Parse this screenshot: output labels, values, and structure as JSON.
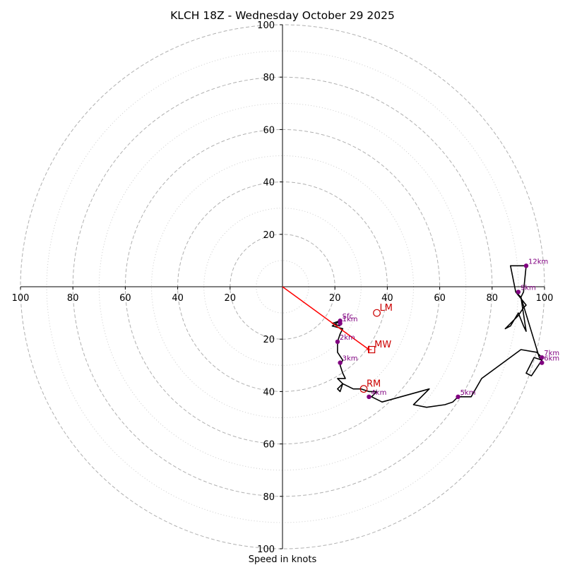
{
  "chart_data": {
    "type": "hodograph",
    "title": "KLCH 18Z - Wednesday October 29 2025",
    "xlabel": "Speed in knots",
    "range": [
      -100,
      100
    ],
    "ring_major": [
      20,
      40,
      60,
      80,
      100
    ],
    "ring_minor": [
      10,
      30,
      50,
      70,
      90
    ],
    "ticks": [
      {
        "label": "100",
        "v": -100
      },
      {
        "label": "80",
        "v": -80
      },
      {
        "label": "60",
        "v": -60
      },
      {
        "label": "40",
        "v": -40
      },
      {
        "label": "20",
        "v": -20
      },
      {
        "label": "20",
        "v": 20
      },
      {
        "label": "40",
        "v": 40
      },
      {
        "label": "60",
        "v": 60
      },
      {
        "label": "80",
        "v": 80
      },
      {
        "label": "100",
        "v": 100
      }
    ],
    "trace": [
      [
        22,
        -15
      ],
      [
        19,
        -14
      ],
      [
        22,
        -13
      ],
      [
        19,
        -15
      ],
      [
        23,
        -16
      ],
      [
        22,
        -18
      ],
      [
        21,
        -21
      ],
      [
        21,
        -25
      ],
      [
        23,
        -28
      ],
      [
        22,
        -30
      ],
      [
        23,
        -33
      ],
      [
        24,
        -35
      ],
      [
        21,
        -35
      ],
      [
        23,
        -37
      ],
      [
        21,
        -39
      ],
      [
        22,
        -40
      ],
      [
        23,
        -37
      ],
      [
        27,
        -39
      ],
      [
        30,
        -39
      ],
      [
        33,
        -40
      ],
      [
        36,
        -40
      ],
      [
        34,
        -42
      ],
      [
        38,
        -44
      ],
      [
        56,
        -39
      ],
      [
        50,
        -45
      ],
      [
        55,
        -46
      ],
      [
        62,
        -45
      ],
      [
        65,
        -44
      ],
      [
        67,
        -42
      ],
      [
        72,
        -42
      ],
      [
        76,
        -35
      ],
      [
        91,
        -24
      ],
      [
        97,
        -25
      ],
      [
        99,
        -27
      ],
      [
        99,
        -28
      ],
      [
        96,
        -27
      ],
      [
        93,
        -33
      ],
      [
        95,
        -34
      ],
      [
        99,
        -28
      ],
      [
        98,
        -27
      ],
      [
        91,
        -4
      ],
      [
        89,
        -2
      ],
      [
        87,
        8
      ],
      [
        93,
        8
      ],
      [
        92,
        -2
      ],
      [
        91,
        -4
      ],
      [
        93,
        -17
      ],
      [
        92,
        -15
      ],
      [
        90,
        -10
      ],
      [
        87,
        -15
      ],
      [
        85,
        -16
      ],
      [
        90,
        -11
      ],
      [
        92,
        -8
      ],
      [
        93,
        -7
      ],
      [
        89,
        -2
      ]
    ],
    "height_markers": [
      {
        "label": "Sfc",
        "u": 22,
        "v": -13
      },
      {
        "label": "1km",
        "u": 22,
        "v": -14
      },
      {
        "label": "2km",
        "u": 21,
        "v": -21
      },
      {
        "label": "3km",
        "u": 22,
        "v": -29
      },
      {
        "label": "4km",
        "u": 33,
        "v": -42
      },
      {
        "label": "5km",
        "u": 67,
        "v": -42
      },
      {
        "label": "6km",
        "u": 99,
        "v": -29
      },
      {
        "label": "7km",
        "u": 99,
        "v": -27
      },
      {
        "label": "9km",
        "u": 90,
        "v": -2
      },
      {
        "label": "12km",
        "u": 93,
        "v": 8
      }
    ],
    "shear_vector": {
      "from": [
        0,
        0
      ],
      "to": [
        33,
        -24
      ]
    },
    "storm_motions": [
      {
        "label": "LM",
        "u": 36,
        "v": -10,
        "symbol": "circle"
      },
      {
        "label": "MW",
        "u": 34,
        "v": -24,
        "symbol": "square"
      },
      {
        "label": "RM",
        "u": 31,
        "v": -39,
        "symbol": "circle"
      }
    ],
    "colors": {
      "trace": "#000000",
      "marker": "#800080",
      "motion": "#cc0000",
      "shear": "#ff0000",
      "grid": "#b0b0b0",
      "grid_minor": "#cccccc"
    }
  }
}
